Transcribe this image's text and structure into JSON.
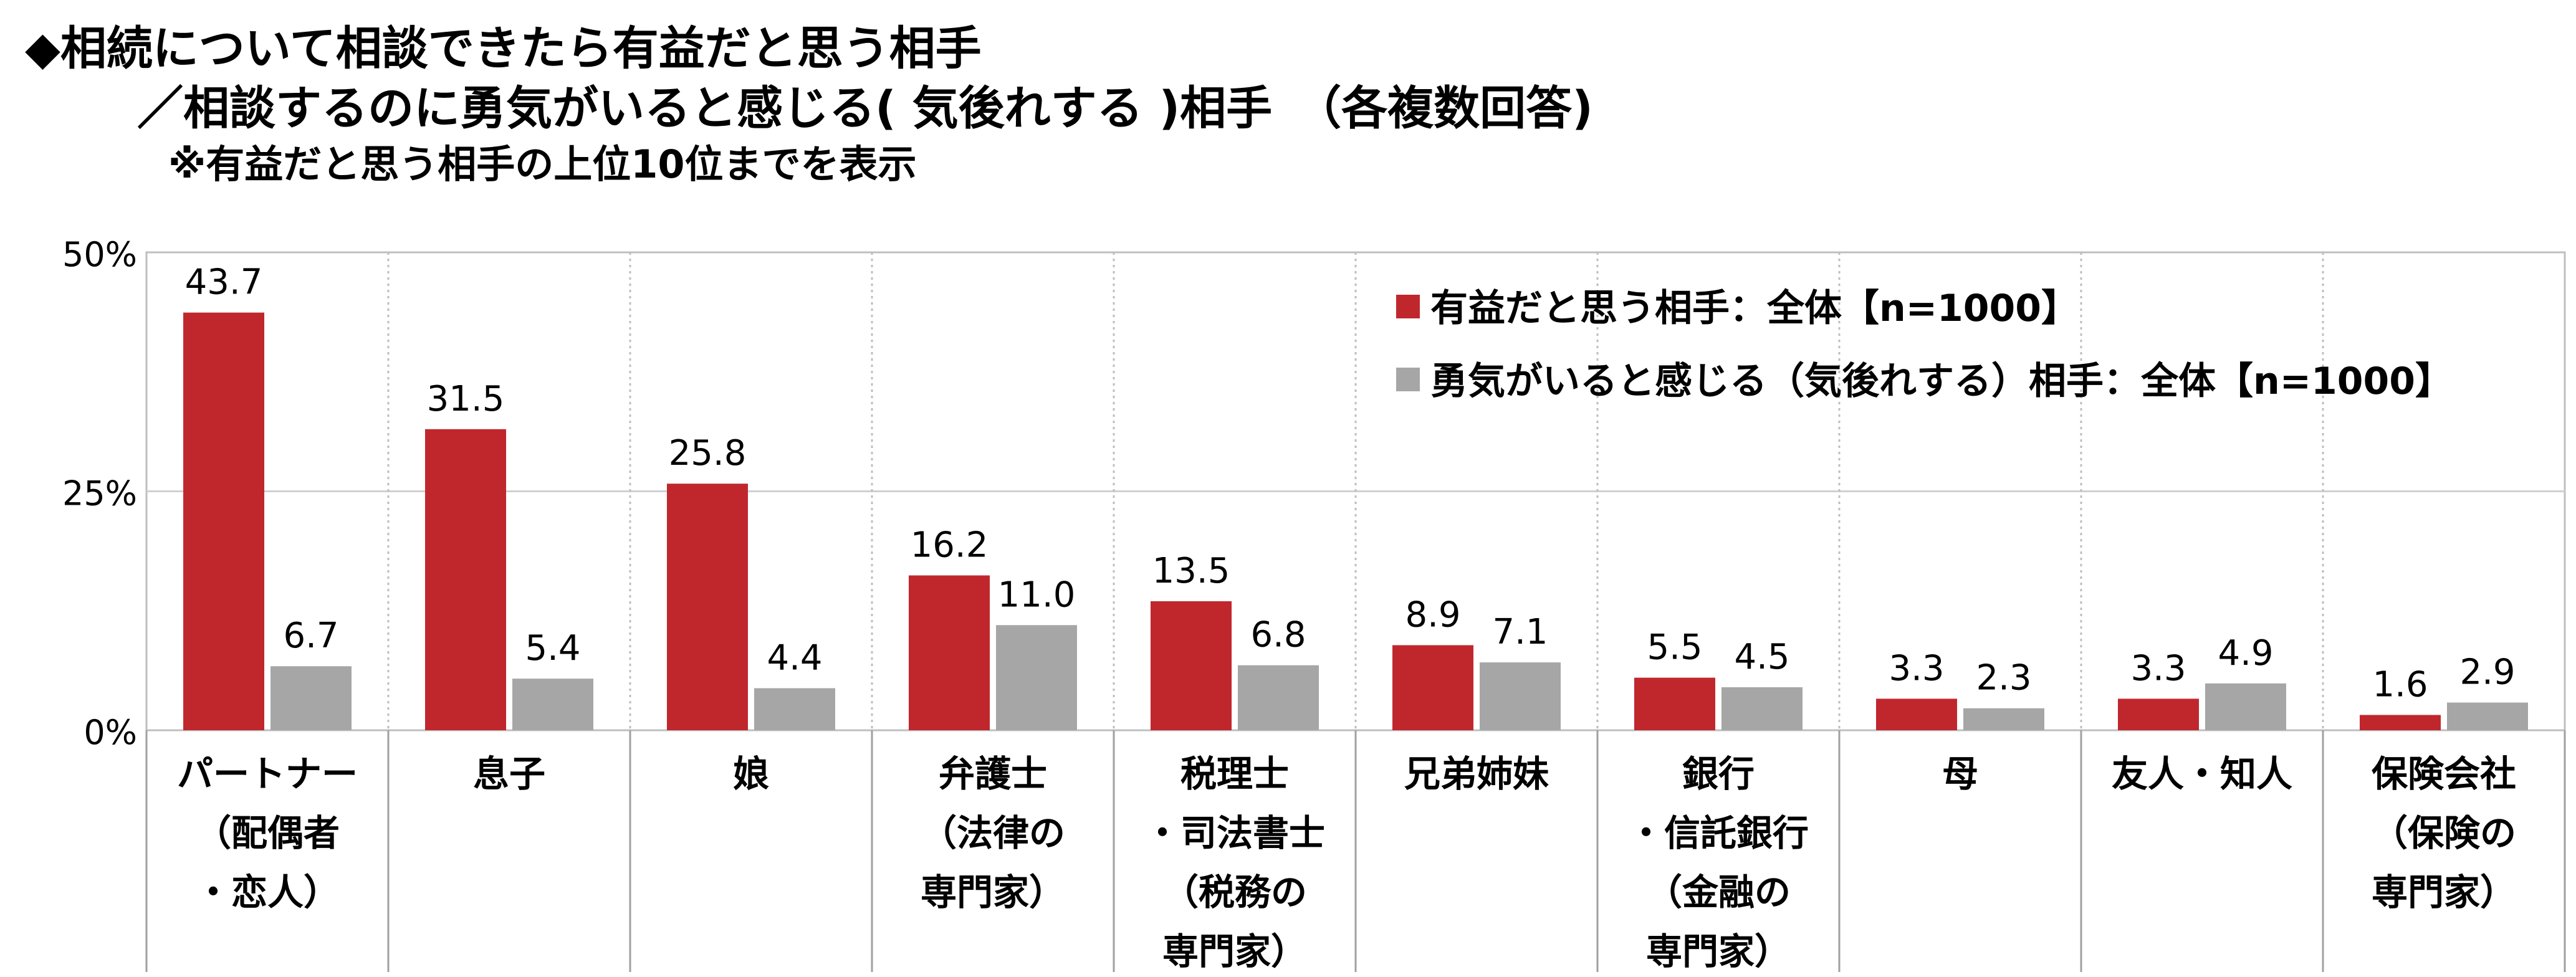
{
  "header": {
    "title": "◆相続について相談できたら有益だと思う相手",
    "subtitle": "／相談するのに勇気がいると感じる( 気後れする )相手　（各複数回答)",
    "note": "※有益だと思う相手の上位10位までを表示"
  },
  "chart_data": {
    "type": "bar",
    "categories": [
      [
        "パートナー",
        "（配偶者",
        "・恋人）"
      ],
      [
        "息子"
      ],
      [
        "娘"
      ],
      [
        "弁護士",
        "（法律の",
        "専門家）"
      ],
      [
        "税理士",
        "・司法書士",
        "（税務の",
        "専門家）"
      ],
      [
        "兄弟姉妹"
      ],
      [
        "銀行",
        "・信託銀行",
        "（金融の",
        "専門家）"
      ],
      [
        "母"
      ],
      [
        "友人・知人"
      ],
      [
        "保険会社",
        "（保険の",
        "専門家）"
      ]
    ],
    "series": [
      {
        "name": "有益だと思う相手：全体【n=1000】",
        "color": "#C0272D",
        "values": [
          43.7,
          31.5,
          25.8,
          16.2,
          13.5,
          8.9,
          5.5,
          3.3,
          3.3,
          1.6
        ]
      },
      {
        "name": "勇気がいると感じる（気後れする）相手：全体【n=1000】",
        "color": "#A6A6A6",
        "values": [
          6.7,
          5.4,
          4.4,
          11.0,
          6.8,
          7.1,
          4.5,
          2.3,
          4.9,
          2.9
        ]
      }
    ],
    "value_labels": [
      [
        "43.7",
        "31.5",
        "25.8",
        "16.2",
        "13.5",
        "8.9",
        "5.5",
        "3.3",
        "3.3",
        "1.6"
      ],
      [
        "6.7",
        "5.4",
        "4.4",
        "11.0",
        "6.8",
        "7.1",
        "4.5",
        "2.3",
        "4.9",
        "2.9"
      ]
    ],
    "yticks": [
      0,
      25,
      50
    ],
    "ytick_labels": [
      "0%",
      "25%",
      "50%"
    ],
    "ylim": [
      0,
      50
    ],
    "legend_position": "top-right",
    "grid": true
  }
}
